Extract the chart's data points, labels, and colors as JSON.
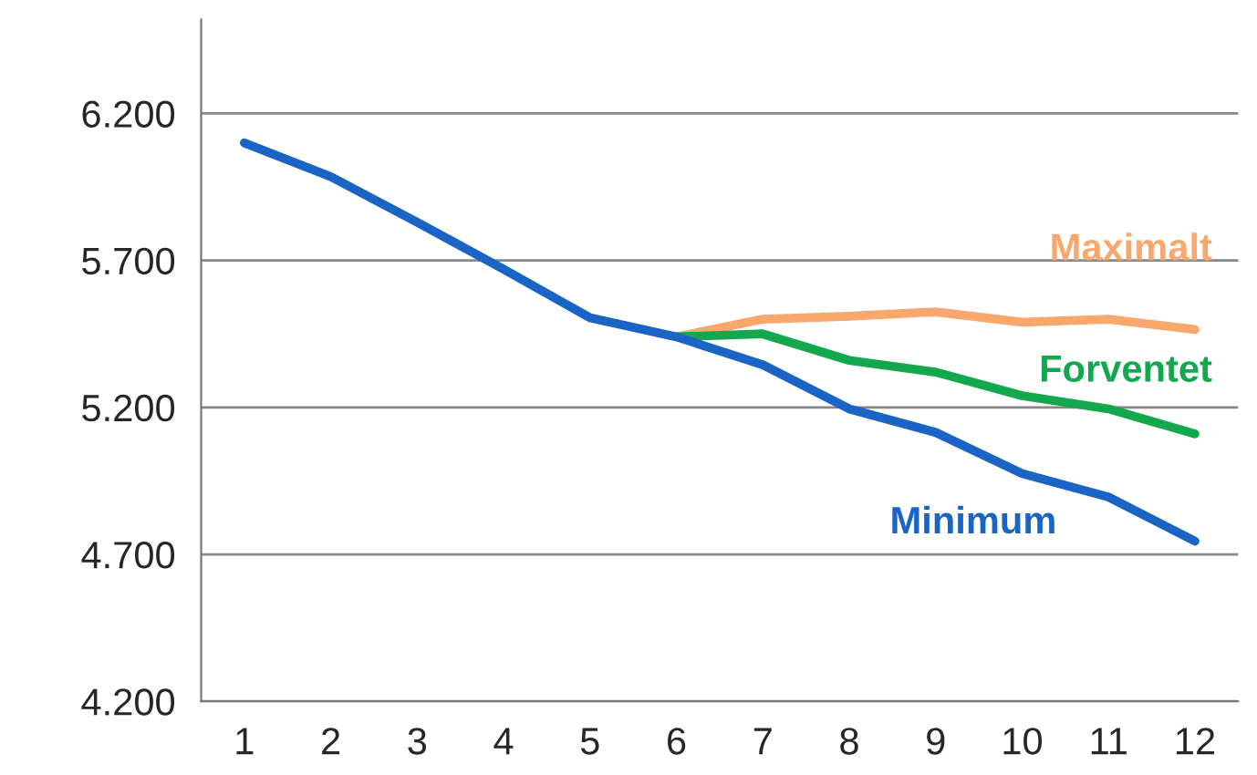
{
  "chart_data": {
    "type": "line",
    "categories": [
      "1",
      "2",
      "3",
      "4",
      "5",
      "6",
      "7",
      "8",
      "9",
      "10",
      "11",
      "12"
    ],
    "series": [
      {
        "name": "Maximalt",
        "color": "#f8a86c",
        "values": [
          null,
          null,
          null,
          null,
          null,
          5440,
          5500,
          5510,
          5525,
          5490,
          5500,
          5465
        ]
      },
      {
        "name": "Forventet",
        "color": "#14a84e",
        "values": [
          null,
          null,
          null,
          null,
          null,
          5440,
          5450,
          5360,
          5320,
          5240,
          5195,
          5110
        ]
      },
      {
        "name": "Minimum",
        "color": "#1a64c6",
        "values": [
          6100,
          5985,
          5830,
          5670,
          5505,
          5440,
          5345,
          5195,
          5115,
          4975,
          4895,
          4745
        ]
      }
    ],
    "ylim": [
      4200,
      6520
    ],
    "yticks": [
      {
        "value": 4200,
        "label": "4.200"
      },
      {
        "value": 4700,
        "label": "4.700"
      },
      {
        "value": 5200,
        "label": "5.200"
      },
      {
        "value": 5700,
        "label": "5.700"
      },
      {
        "value": 6200,
        "label": "6.200"
      }
    ],
    "grid": "y",
    "legend": false,
    "marker": "none",
    "line_style": "solid"
  }
}
